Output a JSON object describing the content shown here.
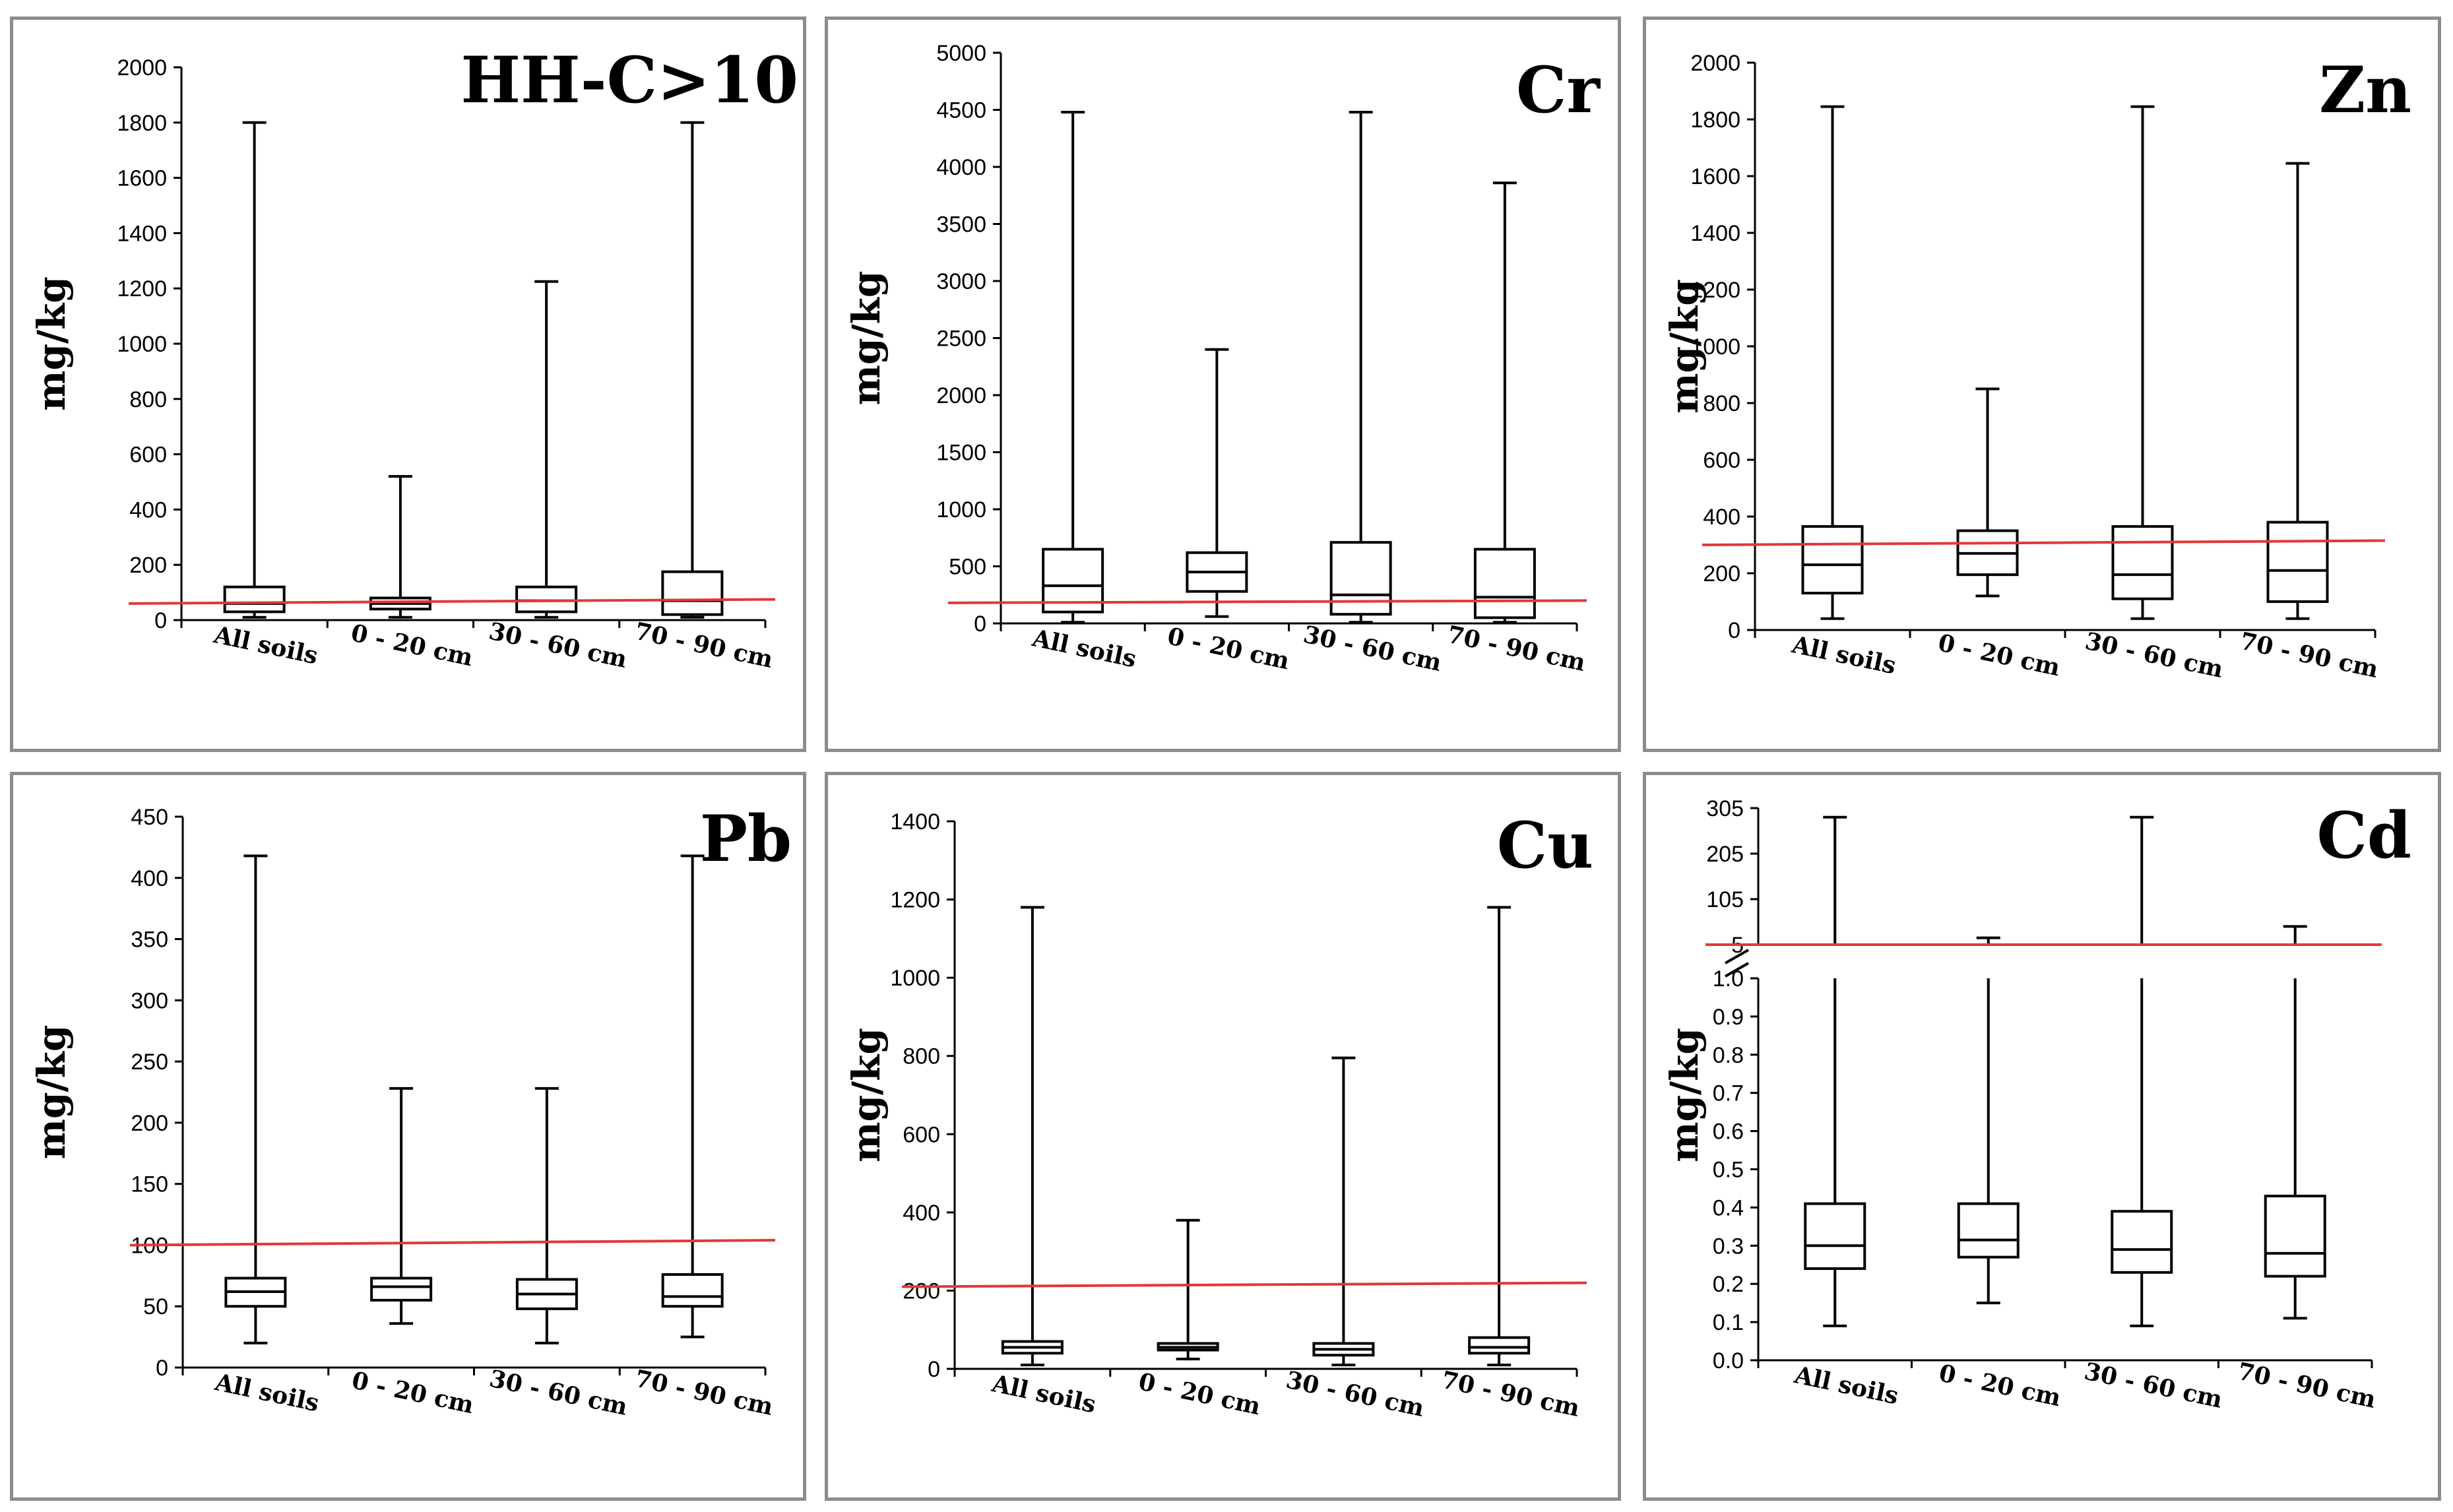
{
  "colors": {
    "threshold": "#e0383a",
    "ink": "#000000",
    "frame": "#8c8c8c"
  },
  "chart_data": [
    {
      "type": "boxplot",
      "title": "HH-C>10",
      "ylabel": "mg/kg",
      "categories": [
        "All soils",
        "0 - 20 cm",
        "30 - 60 cm",
        "70 - 90 cm"
      ],
      "ylim": [
        0,
        2000
      ],
      "yticks": [
        "0",
        "200",
        "400",
        "600",
        "800",
        "1000",
        "1200",
        "1400",
        "1600",
        "1800",
        "2000"
      ],
      "yvalues": [
        0,
        200,
        400,
        600,
        800,
        1000,
        1200,
        1400,
        1600,
        1800,
        2000
      ],
      "boxes": [
        {
          "min": 10,
          "q1": 30,
          "median": 60,
          "q3": 120,
          "max": 1800
        },
        {
          "min": 10,
          "q1": 40,
          "median": 60,
          "q3": 80,
          "max": 520
        },
        {
          "min": 10,
          "q1": 30,
          "median": 70,
          "q3": 120,
          "max": 1225
        },
        {
          "min": 10,
          "q1": 20,
          "median": 70,
          "q3": 175,
          "max": 1800
        }
      ],
      "threshold": [
        60,
        75
      ]
    },
    {
      "type": "boxplot",
      "title": "Cr",
      "ylabel": "mg/kg",
      "categories": [
        "All soils",
        "0 - 20 cm",
        "30 - 60 cm",
        "70 - 90 cm"
      ],
      "ylim": [
        0,
        5000
      ],
      "yticks": [
        "0",
        "500",
        "1000",
        "1500",
        "2000",
        "2500",
        "3000",
        "3500",
        "4000",
        "4500",
        "5000"
      ],
      "yvalues": [
        0,
        500,
        1000,
        1500,
        2000,
        2500,
        3000,
        3500,
        4000,
        4500,
        5000
      ],
      "boxes": [
        {
          "min": 10,
          "q1": 100,
          "median": 330,
          "q3": 650,
          "max": 4480
        },
        {
          "min": 60,
          "q1": 280,
          "median": 450,
          "q3": 620,
          "max": 2400
        },
        {
          "min": 10,
          "q1": 80,
          "median": 250,
          "q3": 710,
          "max": 4480
        },
        {
          "min": 10,
          "q1": 50,
          "median": 230,
          "q3": 650,
          "max": 3860
        }
      ],
      "threshold": [
        180,
        200
      ]
    },
    {
      "type": "boxplot",
      "title": "Zn",
      "ylabel": "mg/kg",
      "categories": [
        "All soils",
        "0 - 20 cm",
        "30 - 60 cm",
        "70 - 90 cm"
      ],
      "ylim": [
        0,
        2000
      ],
      "yticks": [
        "0",
        "200",
        "400",
        "600",
        "800",
        "1000",
        "1200",
        "1400",
        "1600",
        "1800",
        "2000"
      ],
      "yvalues": [
        0,
        200,
        400,
        600,
        800,
        1000,
        1200,
        1400,
        1600,
        1800,
        2000
      ],
      "boxes": [
        {
          "min": 40,
          "q1": 130,
          "median": 230,
          "q3": 365,
          "max": 1845
        },
        {
          "min": 120,
          "q1": 195,
          "median": 270,
          "q3": 350,
          "max": 850
        },
        {
          "min": 40,
          "q1": 110,
          "median": 195,
          "q3": 365,
          "max": 1845
        },
        {
          "min": 40,
          "q1": 100,
          "median": 210,
          "q3": 380,
          "max": 1645
        }
      ],
      "threshold": [
        300,
        315
      ]
    },
    {
      "type": "boxplot",
      "title": "Pb",
      "ylabel": "mg/kg",
      "categories": [
        "All soils",
        "0 - 20 cm",
        "30 - 60 cm",
        "70 - 90 cm"
      ],
      "ylim": [
        0,
        450
      ],
      "yticks": [
        "0",
        "50",
        "100",
        "150",
        "200",
        "250",
        "300",
        "350",
        "400",
        "450"
      ],
      "yvalues": [
        0,
        50,
        100,
        150,
        200,
        250,
        300,
        350,
        400,
        450
      ],
      "boxes": [
        {
          "min": 20,
          "q1": 50,
          "median": 62,
          "q3": 73,
          "max": 418
        },
        {
          "min": 36,
          "q1": 55,
          "median": 66,
          "q3": 73,
          "max": 228
        },
        {
          "min": 20,
          "q1": 48,
          "median": 60,
          "q3": 72,
          "max": 228
        },
        {
          "min": 25,
          "q1": 50,
          "median": 58,
          "q3": 76,
          "max": 418
        }
      ],
      "threshold": [
        100,
        104
      ]
    },
    {
      "type": "boxplot",
      "title": "Cu",
      "ylabel": "mg/kg",
      "categories": [
        "All soils",
        "0 - 20 cm",
        "30 - 60 cm",
        "70 - 90 cm"
      ],
      "ylim": [
        0,
        1400
      ],
      "yticks": [
        "0",
        "200",
        "400",
        "600",
        "800",
        "1000",
        "1200",
        "1400"
      ],
      "yvalues": [
        0,
        200,
        400,
        600,
        800,
        1000,
        1200,
        1400
      ],
      "boxes": [
        {
          "min": 10,
          "q1": 40,
          "median": 55,
          "q3": 70,
          "max": 1180
        },
        {
          "min": 25,
          "q1": 48,
          "median": 55,
          "q3": 65,
          "max": 380
        },
        {
          "min": 10,
          "q1": 35,
          "median": 50,
          "q3": 65,
          "max": 795
        },
        {
          "min": 10,
          "q1": 40,
          "median": 55,
          "q3": 80,
          "max": 1180
        }
      ],
      "threshold": [
        210,
        220
      ]
    },
    {
      "type": "boxplot",
      "title": "Cd",
      "ylabel": "mg/kg",
      "categories": [
        "All soils",
        "0 - 20 cm",
        "30 - 60 cm",
        "70 - 90 cm"
      ],
      "broken_axis": true,
      "lower_ylim": [
        0,
        1.0
      ],
      "lower_yticks": [
        "0.0",
        "0.1",
        "0.2",
        "0.3",
        "0.4",
        "0.5",
        "0.6",
        "0.7",
        "0.8",
        "0.9",
        "1.0"
      ],
      "lower_yvalues": [
        0,
        0.1,
        0.2,
        0.3,
        0.4,
        0.5,
        0.6,
        0.7,
        0.8,
        0.9,
        1.0
      ],
      "upper_ylim": [
        5,
        305
      ],
      "upper_yticks": [
        "5",
        "105",
        "205",
        "305"
      ],
      "upper_yvalues": [
        5,
        105,
        205,
        305
      ],
      "boxes": [
        {
          "min": 0.09,
          "q1": 0.24,
          "median": 0.3,
          "q3": 0.41,
          "max": 285
        },
        {
          "min": 0.15,
          "q1": 0.27,
          "median": 0.315,
          "q3": 0.41,
          "max": 20
        },
        {
          "min": 0.09,
          "q1": 0.23,
          "median": 0.29,
          "q3": 0.39,
          "max": 285
        },
        {
          "min": 0.11,
          "q1": 0.22,
          "median": 0.28,
          "q3": 0.43,
          "max": 45
        }
      ],
      "threshold": [
        5,
        5
      ]
    }
  ]
}
